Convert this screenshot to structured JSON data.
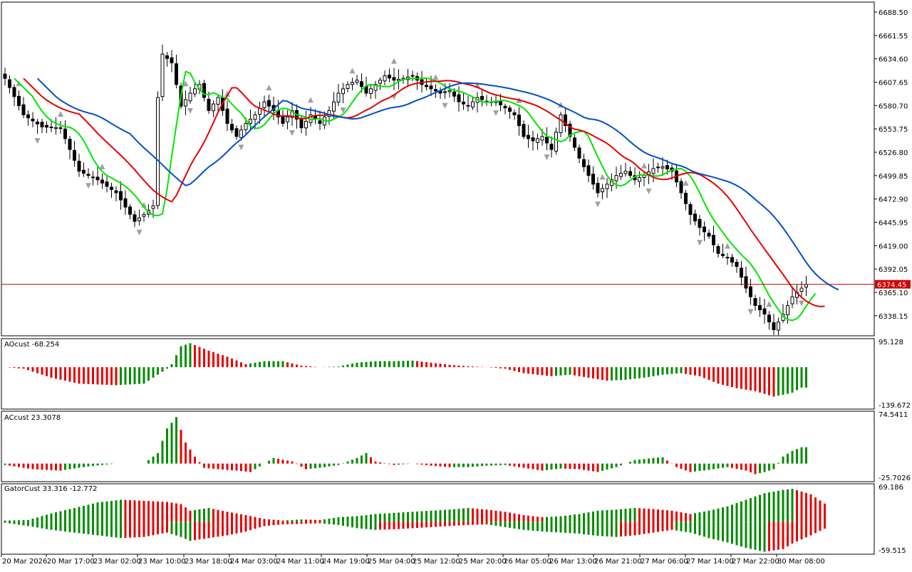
{
  "colors": {
    "background": "#ffffff",
    "bull_candle": "#ffffff",
    "bear_candle": "#000000",
    "ma_fast": "#00e600",
    "ma_mid": "#e60000",
    "ma_slow": "#0050c8",
    "hist_up": "#008c00",
    "hist_down": "#e60000",
    "price_line": "#cc0000",
    "fractal": "#a0a0a0"
  },
  "chart_data": [
    {
      "type": "candlestick",
      "panel": "main",
      "ylim": [
        6315,
        6700
      ],
      "y_ticks": [
        "6688.50",
        "6661.55",
        "6634.60",
        "6607.65",
        "6580.70",
        "6553.75",
        "6526.80",
        "6499.85",
        "6472.90",
        "6445.95",
        "6419.00",
        "6392.05",
        "6365.10",
        "6338.15"
      ],
      "current_price": "6374.45",
      "x_ticks": [
        "20 Mar 2026",
        "20 Mar 17:00",
        "23 Mar 02:00",
        "23 Mar 10:00",
        "23 Mar 18:00",
        "24 Mar 03:00",
        "24 Mar 11:00",
        "24 Mar 19:00",
        "25 Mar 04:00",
        "25 Mar 12:00",
        "25 Mar 20:00",
        "26 Mar 05:00",
        "26 Mar 13:00",
        "26 Mar 21:00",
        "27 Mar 06:00",
        "27 Mar 14:00",
        "27 Mar 22:00",
        "30 Mar 08:00"
      ],
      "close_anchors": [
        [
          0,
          6612
        ],
        [
          4,
          6570
        ],
        [
          8,
          6556
        ],
        [
          12,
          6555
        ],
        [
          16,
          6505
        ],
        [
          20,
          6495
        ],
        [
          24,
          6480
        ],
        [
          28,
          6447
        ],
        [
          30,
          6455
        ],
        [
          32,
          6465
        ],
        [
          33,
          6590
        ],
        [
          34,
          6640
        ],
        [
          36,
          6630
        ],
        [
          38,
          6580
        ],
        [
          40,
          6595
        ],
        [
          42,
          6605
        ],
        [
          44,
          6575
        ],
        [
          46,
          6590
        ],
        [
          48,
          6560
        ],
        [
          50,
          6545
        ],
        [
          52,
          6560
        ],
        [
          54,
          6570
        ],
        [
          56,
          6585
        ],
        [
          58,
          6575
        ],
        [
          60,
          6560
        ],
        [
          62,
          6575
        ],
        [
          64,
          6555
        ],
        [
          66,
          6570
        ],
        [
          68,
          6560
        ],
        [
          70,
          6575
        ],
        [
          72,
          6595
        ],
        [
          74,
          6605
        ],
        [
          76,
          6610
        ],
        [
          78,
          6595
        ],
        [
          80,
          6605
        ],
        [
          82,
          6615
        ],
        [
          84,
          6610
        ],
        [
          86,
          6612
        ],
        [
          88,
          6615
        ],
        [
          90,
          6605
        ],
        [
          92,
          6600
        ],
        [
          94,
          6595
        ],
        [
          96,
          6598
        ],
        [
          98,
          6585
        ],
        [
          100,
          6580
        ],
        [
          102,
          6590
        ],
        [
          104,
          6585
        ],
        [
          106,
          6585
        ],
        [
          108,
          6578
        ],
        [
          110,
          6570
        ],
        [
          112,
          6545
        ],
        [
          114,
          6540
        ],
        [
          116,
          6545
        ],
        [
          118,
          6530
        ],
        [
          120,
          6570
        ],
        [
          122,
          6545
        ],
        [
          124,
          6520
        ],
        [
          126,
          6500
        ],
        [
          128,
          6480
        ],
        [
          130,
          6490
        ],
        [
          132,
          6500
        ],
        [
          134,
          6505
        ],
        [
          136,
          6495
        ],
        [
          138,
          6500
        ],
        [
          140,
          6508
        ],
        [
          142,
          6510
        ],
        [
          144,
          6505
        ],
        [
          146,
          6480
        ],
        [
          148,
          6455
        ],
        [
          150,
          6440
        ],
        [
          152,
          6430
        ],
        [
          154,
          6410
        ],
        [
          156,
          6405
        ],
        [
          158,
          6395
        ],
        [
          160,
          6370
        ],
        [
          162,
          6350
        ],
        [
          164,
          6340
        ],
        [
          166,
          6322
        ],
        [
          168,
          6340
        ],
        [
          170,
          6360
        ],
        [
          172,
          6370
        ],
        [
          173,
          6374.45
        ]
      ],
      "series": [
        {
          "name": "",
          "color_key": "ma_fast",
          "period": 5
        },
        {
          "name": "",
          "color_key": "ma_mid",
          "period": 13
        },
        {
          "name": "",
          "color_key": "ma_slow",
          "period": 21
        }
      ]
    },
    {
      "type": "histogram",
      "panel": "ao",
      "label": "AOcust -68.254",
      "ylim": [
        -139.672,
        95.128
      ],
      "y_ticks": [
        "95.128",
        "-139.672"
      ],
      "value_anchors": [
        [
          0,
          0
        ],
        [
          4,
          -5
        ],
        [
          10,
          -35
        ],
        [
          16,
          -55
        ],
        [
          24,
          -60
        ],
        [
          30,
          -55
        ],
        [
          35,
          -5
        ],
        [
          36,
          10
        ],
        [
          38,
          70
        ],
        [
          40,
          80
        ],
        [
          44,
          55
        ],
        [
          48,
          35
        ],
        [
          52,
          10
        ],
        [
          56,
          20
        ],
        [
          60,
          20
        ],
        [
          64,
          5
        ],
        [
          68,
          0
        ],
        [
          72,
          2
        ],
        [
          76,
          15
        ],
        [
          80,
          20
        ],
        [
          84,
          20
        ],
        [
          88,
          22
        ],
        [
          92,
          15
        ],
        [
          96,
          8
        ],
        [
          100,
          3
        ],
        [
          104,
          0
        ],
        [
          108,
          -5
        ],
        [
          112,
          -20
        ],
        [
          118,
          -30
        ],
        [
          122,
          -25
        ],
        [
          126,
          -35
        ],
        [
          130,
          -45
        ],
        [
          134,
          -42
        ],
        [
          138,
          -35
        ],
        [
          142,
          -25
        ],
        [
          146,
          -20
        ],
        [
          150,
          -30
        ],
        [
          154,
          -55
        ],
        [
          158,
          -70
        ],
        [
          162,
          -80
        ],
        [
          166,
          -98
        ],
        [
          168,
          -92
        ],
        [
          170,
          -85
        ],
        [
          172,
          -68
        ]
      ]
    },
    {
      "type": "histogram",
      "panel": "ac",
      "label": "ACcust 23.3078",
      "ylim": [
        -25.7026,
        74.5411
      ],
      "y_ticks": [
        "74.5411",
        "-25.7026"
      ],
      "value_anchors": [
        [
          0,
          -2
        ],
        [
          6,
          -8
        ],
        [
          12,
          -10
        ],
        [
          18,
          -4
        ],
        [
          24,
          0
        ],
        [
          30,
          0
        ],
        [
          33,
          15
        ],
        [
          35,
          50
        ],
        [
          37,
          66
        ],
        [
          39,
          30
        ],
        [
          41,
          10
        ],
        [
          43,
          -6
        ],
        [
          46,
          -8
        ],
        [
          50,
          -10
        ],
        [
          53,
          -12
        ],
        [
          56,
          0
        ],
        [
          58,
          8
        ],
        [
          62,
          3
        ],
        [
          65,
          -8
        ],
        [
          68,
          -6
        ],
        [
          72,
          -2
        ],
        [
          76,
          8
        ],
        [
          78,
          15
        ],
        [
          80,
          3
        ],
        [
          84,
          -2
        ],
        [
          88,
          0
        ],
        [
          92,
          -3
        ],
        [
          96,
          -5
        ],
        [
          100,
          -5
        ],
        [
          104,
          -3
        ],
        [
          108,
          -2
        ],
        [
          112,
          -6
        ],
        [
          116,
          -10
        ],
        [
          120,
          -7
        ],
        [
          124,
          -8
        ],
        [
          128,
          -12
        ],
        [
          132,
          -5
        ],
        [
          136,
          5
        ],
        [
          140,
          8
        ],
        [
          142,
          9
        ],
        [
          145,
          -5
        ],
        [
          148,
          -12
        ],
        [
          152,
          -9
        ],
        [
          156,
          -5
        ],
        [
          160,
          -10
        ],
        [
          162,
          -15
        ],
        [
          164,
          -12
        ],
        [
          166,
          -8
        ],
        [
          168,
          10
        ],
        [
          170,
          18
        ],
        [
          172,
          23.3
        ]
      ]
    },
    {
      "type": "histogram",
      "panel": "gator",
      "label": "GatorCust 33.316 -12.772",
      "ylim": [
        -59.515,
        69.186
      ],
      "y_ticks": [
        "69.186",
        "-59.515"
      ],
      "upper_anchors": [
        [
          0,
          2
        ],
        [
          5,
          3
        ],
        [
          10,
          15
        ],
        [
          15,
          25
        ],
        [
          20,
          35
        ],
        [
          25,
          40
        ],
        [
          30,
          38
        ],
        [
          35,
          36
        ],
        [
          38,
          32
        ],
        [
          40,
          20
        ],
        [
          44,
          25
        ],
        [
          48,
          18
        ],
        [
          52,
          12
        ],
        [
          56,
          5
        ],
        [
          60,
          2
        ],
        [
          64,
          4
        ],
        [
          68,
          3
        ],
        [
          72,
          8
        ],
        [
          76,
          10
        ],
        [
          80,
          14
        ],
        [
          84,
          16
        ],
        [
          88,
          18
        ],
        [
          92,
          20
        ],
        [
          96,
          22
        ],
        [
          100,
          25
        ],
        [
          104,
          22
        ],
        [
          108,
          18
        ],
        [
          112,
          12
        ],
        [
          116,
          8
        ],
        [
          120,
          10
        ],
        [
          124,
          14
        ],
        [
          128,
          20
        ],
        [
          132,
          22
        ],
        [
          136,
          25
        ],
        [
          140,
          23
        ],
        [
          144,
          20
        ],
        [
          148,
          14
        ],
        [
          152,
          20
        ],
        [
          156,
          28
        ],
        [
          160,
          40
        ],
        [
          164,
          52
        ],
        [
          168,
          58
        ],
        [
          170,
          60
        ],
        [
          174,
          50
        ],
        [
          177,
          33
        ]
      ],
      "lower_anchors": [
        [
          0,
          -2
        ],
        [
          5,
          -8
        ],
        [
          10,
          -15
        ],
        [
          15,
          -20
        ],
        [
          20,
          -25
        ],
        [
          25,
          -30
        ],
        [
          30,
          -28
        ],
        [
          35,
          -20
        ],
        [
          38,
          -28
        ],
        [
          40,
          -35
        ],
        [
          44,
          -30
        ],
        [
          48,
          -25
        ],
        [
          52,
          -18
        ],
        [
          56,
          -8
        ],
        [
          60,
          -5
        ],
        [
          64,
          -4
        ],
        [
          68,
          -3
        ],
        [
          72,
          -6
        ],
        [
          76,
          -12
        ],
        [
          80,
          -15
        ],
        [
          84,
          -14
        ],
        [
          88,
          -12
        ],
        [
          92,
          -10
        ],
        [
          96,
          -8
        ],
        [
          100,
          -6
        ],
        [
          104,
          -5
        ],
        [
          108,
          -10
        ],
        [
          112,
          -15
        ],
        [
          116,
          -18
        ],
        [
          120,
          -20
        ],
        [
          124,
          -22
        ],
        [
          128,
          -26
        ],
        [
          132,
          -28
        ],
        [
          136,
          -25
        ],
        [
          140,
          -20
        ],
        [
          144,
          -15
        ],
        [
          148,
          -20
        ],
        [
          152,
          -30
        ],
        [
          156,
          -38
        ],
        [
          160,
          -48
        ],
        [
          164,
          -55
        ],
        [
          168,
          -50
        ],
        [
          170,
          -40
        ],
        [
          174,
          -25
        ],
        [
          177,
          -12.8
        ]
      ]
    }
  ]
}
